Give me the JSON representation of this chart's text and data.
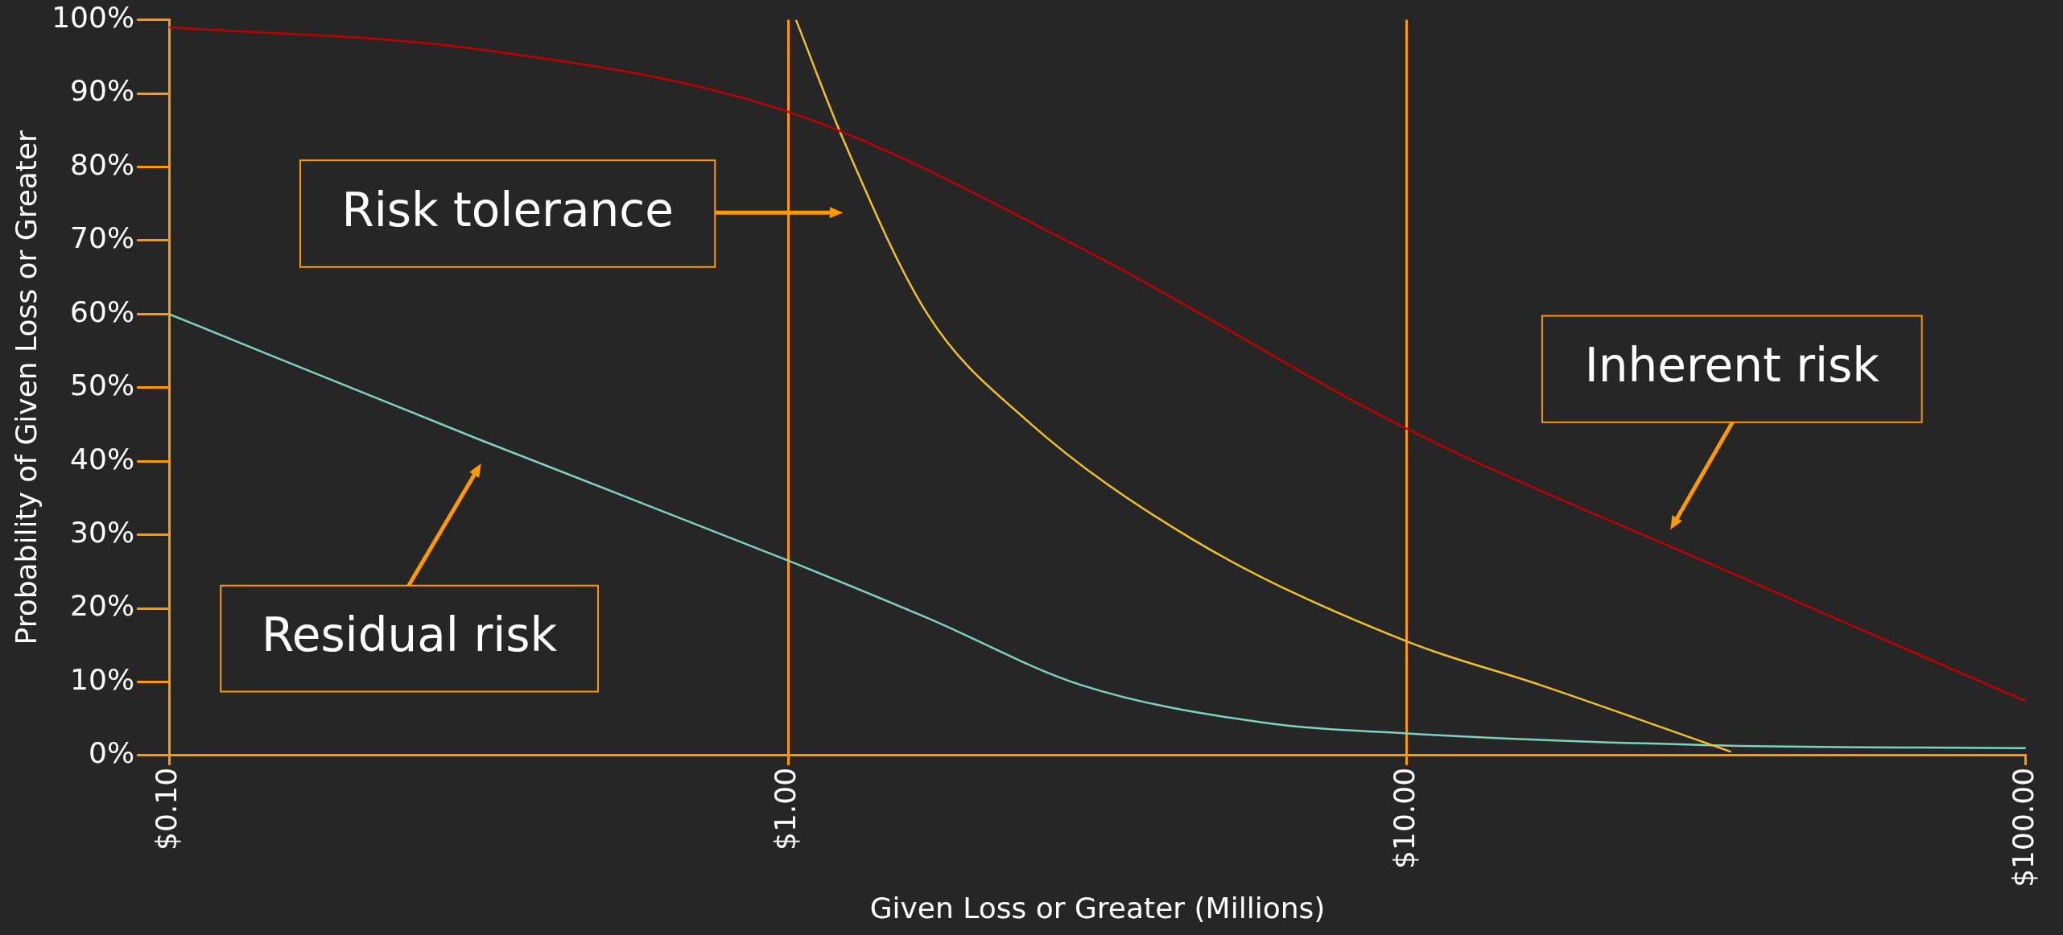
{
  "chart_data": {
    "type": "line",
    "xlabel": "Given Loss or Greater (Millions)",
    "ylabel": "Probability of Given Loss or Greater",
    "log": "x",
    "grid": "x",
    "legend": false,
    "marker": "none",
    "line_style": "solid",
    "xlim": [
      0.1,
      100
    ],
    "xticks": [
      {
        "value": 0.1,
        "label": "$0.10"
      },
      {
        "value": 1,
        "label": "$1.00"
      },
      {
        "value": 10,
        "label": "$10.00"
      },
      {
        "value": 100,
        "label": "$100.00"
      }
    ],
    "ylim": [
      0,
      100
    ],
    "yticks": [
      {
        "value": 0,
        "label": "0%"
      },
      {
        "value": 10,
        "label": "10%"
      },
      {
        "value": 20,
        "label": "20%"
      },
      {
        "value": 30,
        "label": "30%"
      },
      {
        "value": 40,
        "label": "40%"
      },
      {
        "value": 50,
        "label": "50%"
      },
      {
        "value": 60,
        "label": "60%"
      },
      {
        "value": 70,
        "label": "70%"
      },
      {
        "value": 80,
        "label": "80%"
      },
      {
        "value": 90,
        "label": "90%"
      },
      {
        "value": 100,
        "label": "100%"
      }
    ],
    "series": [
      {
        "name": "Inherent risk",
        "color": "#c00000",
        "x": [
          0.1,
          0.316,
          1,
          2.97,
          10,
          31,
          100
        ],
        "values": [
          99,
          96,
          87.5,
          69,
          44.4,
          26,
          7.4
        ]
      },
      {
        "name": "Risk tolerance",
        "color": "#f2c12e",
        "x": [
          1.03,
          1.23,
          1.68,
          2.42,
          4.5,
          10,
          16.4,
          33.4
        ],
        "values": [
          100,
          83.6,
          60,
          45.7,
          29.4,
          15.5,
          9.6,
          0.5
        ]
      },
      {
        "name": "Residual risk",
        "color": "#7fd1c0",
        "x": [
          0.1,
          0.316,
          1,
          1.69,
          2.97,
          5.83,
          10,
          31,
          100
        ],
        "values": [
          60,
          43,
          26.5,
          18.6,
          9.6,
          4.5,
          3,
          1.4,
          1
        ]
      }
    ]
  }
}
